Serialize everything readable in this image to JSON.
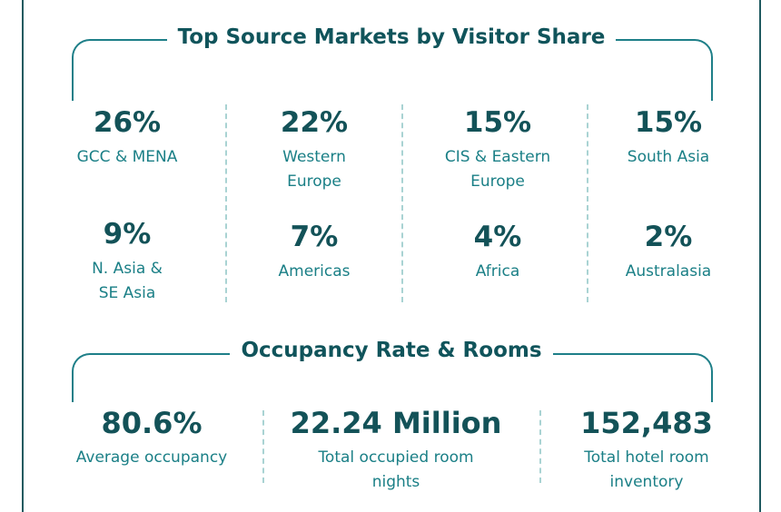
{
  "markets": {
    "title": "Top Source Markets by Visitor Share",
    "items": [
      {
        "value": "26%",
        "label_1": "GCC & MENA",
        "label_2": ""
      },
      {
        "value": "22%",
        "label_1": "Western",
        "label_2": "Europe"
      },
      {
        "value": "15%",
        "label_1": "CIS & Eastern",
        "label_2": "Europe"
      },
      {
        "value": "15%",
        "label_1": "South Asia",
        "label_2": ""
      },
      {
        "value": "9%",
        "label_1": "N. Asia &",
        "label_2": "SE Asia"
      },
      {
        "value": "7%",
        "label_1": "Americas",
        "label_2": ""
      },
      {
        "value": "4%",
        "label_1": "Africa",
        "label_2": ""
      },
      {
        "value": "2%",
        "label_1": "Australasia",
        "label_2": ""
      }
    ]
  },
  "occupancy": {
    "title": "Occupancy Rate & Rooms",
    "items": [
      {
        "value": "80.6%",
        "label_1": "Average occupancy",
        "label_2": ""
      },
      {
        "value": "22.24 Million",
        "label_1": "Total occupied room",
        "label_2": "nights"
      },
      {
        "value": "152,483",
        "label_1": "Total hotel room",
        "label_2": "inventory"
      }
    ]
  },
  "colors": {
    "heading": "#10545b",
    "value": "#135258",
    "label": "#1a7f86",
    "bracket": "#1e7f88",
    "divider": "#a9d3d3",
    "frame": "#1f5a60"
  }
}
